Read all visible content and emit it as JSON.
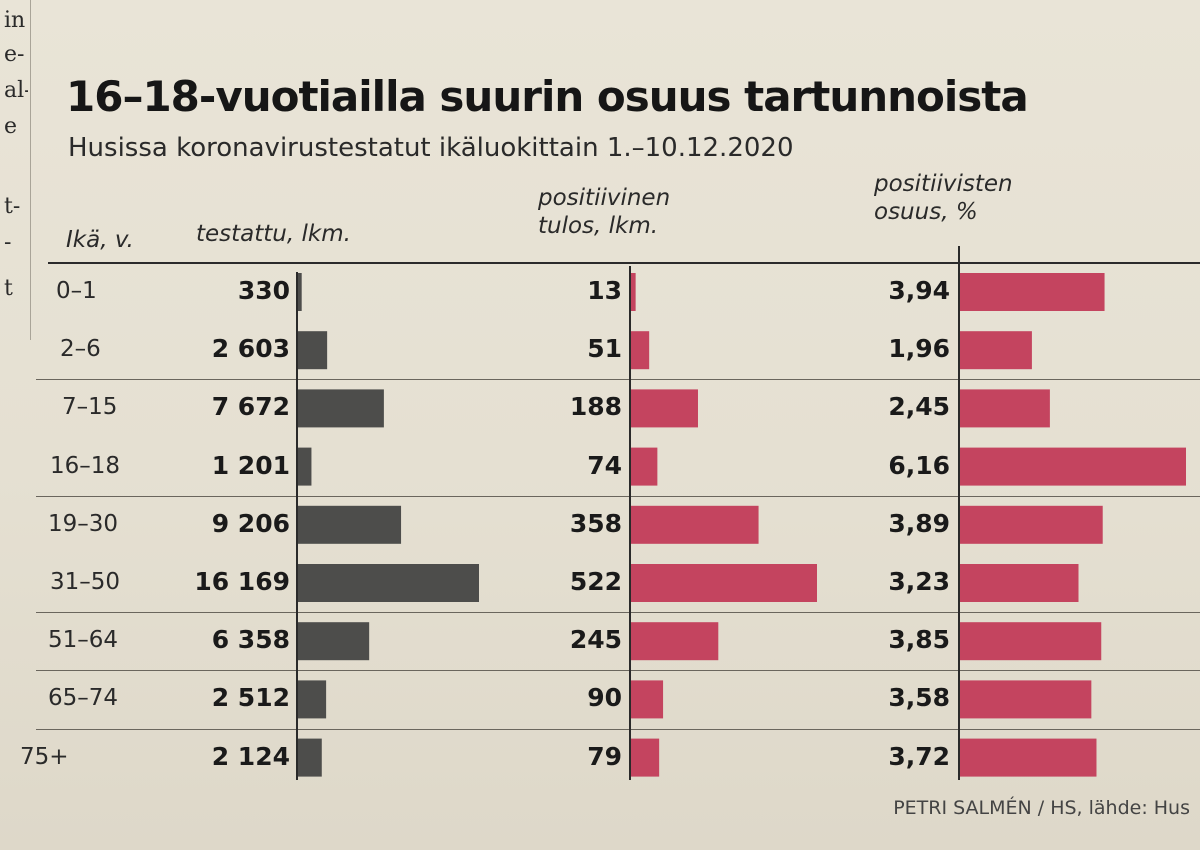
{
  "margin_fragments": [
    "in",
    "e-",
    "al-",
    "e",
    "t-",
    "-",
    "t"
  ],
  "chart_data": {
    "type": "bar",
    "title": "16–18-vuotiailla suurin osuus tartunnoista",
    "subtitle": "Husissa koronavirustestatut ikäluokittain 1.–10.12.2020",
    "category_header": "Ikä, v.",
    "categories": [
      "0–1",
      "2–6",
      "7–15",
      "16–18",
      "19–30",
      "31–50",
      "51–64",
      "65–74",
      "75+"
    ],
    "series": [
      {
        "name": "testattu, lkm.",
        "values": [
          330,
          2603,
          7672,
          1201,
          9206,
          16169,
          6358,
          2512,
          2124
        ],
        "labels": [
          "330",
          "2 603",
          "7 672",
          "1 201",
          "9 206",
          "16 169",
          "6 358",
          "2 512",
          "2 124"
        ],
        "color": "#4d4d4b"
      },
      {
        "name": "positiivinen tulos, lkm.",
        "name_lines": [
          "positiivinen",
          "tulos, lkm."
        ],
        "values": [
          13,
          51,
          188,
          74,
          358,
          522,
          245,
          90,
          79
        ],
        "labels": [
          "13",
          "51",
          "188",
          "74",
          "358",
          "522",
          "245",
          "90",
          "79"
        ],
        "color": "#c4445f"
      },
      {
        "name": "positiivisten osuus, %",
        "name_lines": [
          "positiivisten",
          "osuus, %"
        ],
        "values": [
          3.94,
          1.96,
          2.45,
          6.16,
          3.89,
          3.23,
          3.85,
          3.58,
          3.72
        ],
        "labels": [
          "3,94",
          "1,96",
          "2,45",
          "6,16",
          "3,89",
          "3,23",
          "3,85",
          "3,58",
          "3,72"
        ],
        "color": "#c4445f"
      }
    ],
    "groups_after": [
      1,
      3,
      5,
      6,
      7
    ],
    "grid": false,
    "legend": "none"
  },
  "credit": "PETRI SALMÉN / HS, lähde: Hus"
}
